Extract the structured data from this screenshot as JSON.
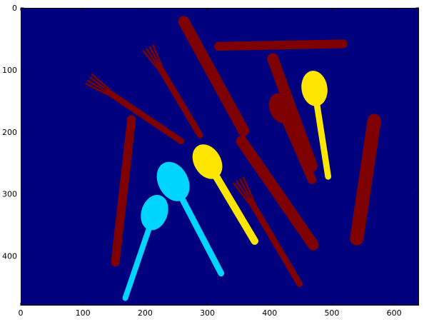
{
  "chart_data": {
    "type": "heatmap",
    "subtype": "label-image",
    "title": "",
    "xlabel": "",
    "ylabel": "",
    "xlim": [
      0,
      640
    ],
    "ylim": [
      480,
      0
    ],
    "y_inverted": true,
    "grid": false,
    "legend": "none",
    "colormap": "jet",
    "background_color": "#00007f",
    "class_colors": {
      "fork_knife": "#7f0000",
      "spoon": "#ffe600",
      "cyan_spoons": "#00d5ff"
    },
    "xticks": [
      0,
      100,
      200,
      300,
      400,
      500,
      600
    ],
    "xtick_labels": [
      "0",
      "100",
      "200",
      "300",
      "400",
      "500",
      "600"
    ],
    "yticks": [
      0,
      100,
      200,
      300,
      400
    ],
    "ytick_labels": [
      "0",
      "100",
      "200",
      "300",
      "400"
    ],
    "regions": [
      {
        "class": "fork_knife",
        "shape": "fork",
        "from": [
          110,
          115
        ],
        "to": [
          258,
          215
        ],
        "width": 10
      },
      {
        "class": "fork_knife",
        "shape": "fork",
        "from": [
          205,
          65
        ],
        "to": [
          288,
          205
        ],
        "width": 10
      },
      {
        "class": "fork_knife",
        "shape": "knife",
        "from": [
          262,
          22
        ],
        "to": [
          358,
          198
        ],
        "width": 18
      },
      {
        "class": "fork_knife",
        "shape": "knife",
        "from": [
          318,
          62
        ],
        "to": [
          518,
          58
        ],
        "width": 14
      },
      {
        "class": "fork_knife",
        "shape": "spoon",
        "bowl": [
          418,
          162
        ],
        "tip": [
          468,
          277
        ],
        "width": 14
      },
      {
        "class": "fork_knife",
        "shape": "knife",
        "from": [
          405,
          82
        ],
        "to": [
          468,
          255
        ],
        "width": 18
      },
      {
        "class": "fork_knife",
        "shape": "knife",
        "from": [
          178,
          180
        ],
        "to": [
          152,
          410
        ],
        "width": 14
      },
      {
        "class": "fork_knife",
        "shape": "fork",
        "from": [
          350,
          278
        ],
        "to": [
          448,
          445
        ],
        "width": 10
      },
      {
        "class": "fork_knife",
        "shape": "knife",
        "from": [
          355,
          215
        ],
        "to": [
          470,
          382
        ],
        "width": 18
      },
      {
        "class": "fork_knife",
        "shape": "knife",
        "from": [
          568,
          182
        ],
        "to": [
          540,
          372
        ],
        "width": 22
      },
      {
        "class": "spoon",
        "shape": "spoon",
        "bowl": [
          472,
          130
        ],
        "tip": [
          494,
          272
        ],
        "width": 10
      },
      {
        "class": "spoon",
        "shape": "spoon",
        "bowl": [
          300,
          248
        ],
        "tip": [
          376,
          376
        ],
        "width": 12
      },
      {
        "class": "cyan_spoons",
        "shape": "spoon",
        "bowl": [
          245,
          280
        ],
        "tip": [
          322,
          428
        ],
        "width": 10
      },
      {
        "class": "cyan_spoons",
        "shape": "spoon",
        "bowl": [
          215,
          330
        ],
        "tip": [
          168,
          468
        ],
        "width": 9
      }
    ]
  }
}
